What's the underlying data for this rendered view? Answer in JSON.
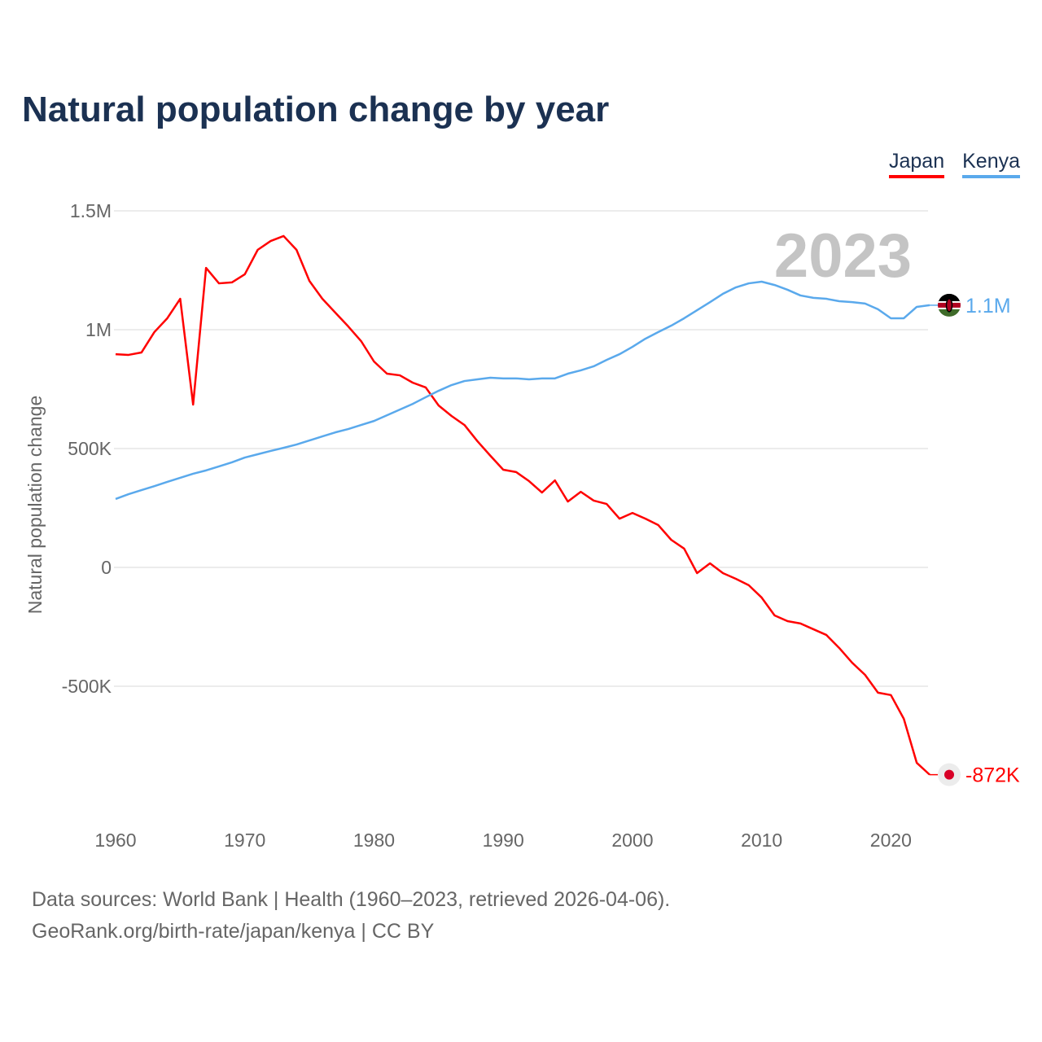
{
  "chart_data": {
    "type": "line",
    "title": "Natural population change by year",
    "ylabel": "Natural population change",
    "xlabel": "",
    "xlim": [
      1960,
      2023
    ],
    "ylim": [
      -950000,
      1500000
    ],
    "x_ticks": [
      1960,
      1970,
      1980,
      1990,
      2000,
      2010,
      2020
    ],
    "x_tick_labels": [
      "1960",
      "1970",
      "1980",
      "1990",
      "2000",
      "2010",
      "2020"
    ],
    "y_ticks": [
      -500000,
      0,
      500000,
      1000000,
      1500000
    ],
    "y_tick_labels": [
      "-500K",
      "0",
      "500K",
      "1M",
      "1.5M"
    ],
    "grid": true,
    "legend_position": "top-right",
    "year_annotation": "2023",
    "x": [
      1960,
      1961,
      1962,
      1963,
      1964,
      1965,
      1966,
      1967,
      1968,
      1969,
      1970,
      1971,
      1972,
      1973,
      1974,
      1975,
      1976,
      1977,
      1978,
      1979,
      1980,
      1981,
      1982,
      1983,
      1984,
      1985,
      1986,
      1987,
      1988,
      1989,
      1990,
      1991,
      1992,
      1993,
      1994,
      1995,
      1996,
      1997,
      1998,
      1999,
      2000,
      2001,
      2002,
      2003,
      2004,
      2005,
      2006,
      2007,
      2008,
      2009,
      2010,
      2011,
      2012,
      2013,
      2014,
      2015,
      2016,
      2017,
      2018,
      2019,
      2020,
      2021,
      2022,
      2023
    ],
    "series": [
      {
        "name": "Japan",
        "color": "#ff0000",
        "end_label": "-872K",
        "flag": "japan-flag",
        "values": [
          897000,
          894000,
          904000,
          990000,
          1048000,
          1130000,
          685000,
          1260000,
          1195000,
          1199000,
          1233000,
          1336000,
          1373000,
          1394000,
          1336000,
          1205000,
          1130000,
          1072000,
          1014000,
          952000,
          866000,
          815000,
          808000,
          777000,
          757000,
          681000,
          637000,
          599000,
          531000,
          470000,
          411000,
          401000,
          363000,
          315000,
          366000,
          277000,
          318000,
          281000,
          267000,
          205000,
          229000,
          205000,
          178000,
          116000,
          79000,
          -24000,
          17000,
          -24000,
          -48000,
          -75000,
          -127000,
          -202000,
          -226000,
          -236000,
          -260000,
          -284000,
          -339000,
          -401000,
          -452000,
          -527000,
          -537000,
          -637000,
          -822000,
          -872000
        ]
      },
      {
        "name": "Kenya",
        "color": "#5aa9ec",
        "end_label": "1.1M",
        "flag": "kenya-flag",
        "values": [
          288000,
          308000,
          325000,
          342000,
          360000,
          377000,
          394000,
          408000,
          425000,
          442000,
          462000,
          476000,
          490000,
          503000,
          517000,
          534000,
          551000,
          568000,
          582000,
          599000,
          616000,
          640000,
          664000,
          688000,
          716000,
          743000,
          767000,
          784000,
          791000,
          798000,
          795000,
          795000,
          791000,
          795000,
          795000,
          815000,
          829000,
          846000,
          873000,
          897000,
          928000,
          962000,
          990000,
          1017000,
          1048000,
          1082000,
          1116000,
          1151000,
          1178000,
          1195000,
          1202000,
          1188000,
          1168000,
          1144000,
          1134000,
          1130000,
          1120000,
          1116000,
          1110000,
          1086000,
          1048000,
          1048000,
          1096000,
          1103000
        ]
      }
    ]
  },
  "footer": {
    "line1": "Data sources: World Bank | Health (1960–2023, retrieved 2026-04-06).",
    "line2": "GeoRank.org/birth-rate/japan/kenya | CC BY"
  }
}
